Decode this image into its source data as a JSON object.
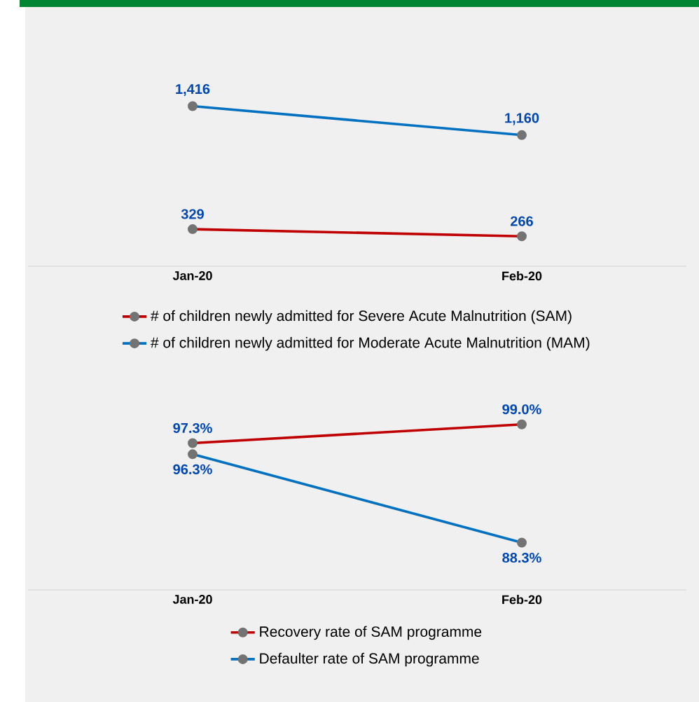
{
  "chart_data": [
    {
      "type": "line",
      "categories": [
        "Jan-20",
        "Feb-20"
      ],
      "tick_labels": "x",
      "legend": "bottom",
      "marker": "circle",
      "line_style": "solid",
      "series": [
        {
          "name": "# of children newly admitted for Severe Acute Malnutrition (SAM)",
          "color": "#c00000",
          "values": [
            329,
            266
          ],
          "value_labels": [
            "329",
            "266"
          ]
        },
        {
          "name": "# of children newly admitted for Moderate Acute Malnutrition (MAM)",
          "color": "#0070c0",
          "values": [
            1416,
            1160
          ],
          "value_labels": [
            "1,416",
            "1,160"
          ]
        }
      ]
    },
    {
      "type": "line",
      "categories": [
        "Jan-20",
        "Feb-20"
      ],
      "tick_labels": "x",
      "legend": "bottom",
      "marker": "circle",
      "line_style": "solid",
      "series": [
        {
          "name": "Recovery rate of SAM programme",
          "color": "#c00000",
          "values": [
            97.3,
            99.0
          ],
          "value_labels": [
            "97.3%",
            "99.0%"
          ]
        },
        {
          "name": "Defaulter rate of SAM programme",
          "color": "#0070c0",
          "values": [
            96.3,
            88.3
          ],
          "value_labels": [
            "96.3%",
            "88.3%"
          ]
        }
      ]
    }
  ]
}
